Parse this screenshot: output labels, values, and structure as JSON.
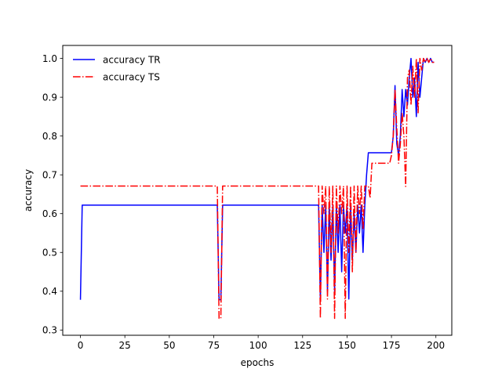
{
  "chart_data": {
    "type": "line",
    "title": "",
    "xlabel": "epochs",
    "ylabel": "accuracy",
    "xlim": [
      -9.95,
      208.95
    ],
    "ylim": [
      0.2865,
      1.0335
    ],
    "xticks": [
      0,
      25,
      50,
      75,
      100,
      125,
      150,
      175,
      200
    ],
    "yticks": [
      0.3,
      0.4,
      0.5,
      0.6,
      0.7,
      0.8,
      0.9,
      1.0
    ],
    "ytick_labels": [
      "0.3",
      "0.4",
      "0.5",
      "0.6",
      "0.7",
      "0.8",
      "0.9",
      "1.0"
    ],
    "grid": false,
    "legend_position": "top-left",
    "series": [
      {
        "name": "accuracy TR",
        "color": "#0000ff",
        "linestyle": "solid",
        "x": [
          0,
          1,
          76,
          77,
          78,
          79,
          80,
          81,
          133,
          134,
          135,
          136,
          137,
          138,
          139,
          140,
          141,
          142,
          143,
          144,
          145,
          146,
          147,
          148,
          149,
          150,
          151,
          152,
          153,
          154,
          155,
          156,
          157,
          158,
          159,
          160,
          161,
          162,
          163,
          164,
          175,
          176,
          177,
          178,
          179,
          180,
          181,
          182,
          183,
          184,
          185,
          186,
          187,
          188,
          189,
          190,
          191,
          192,
          193,
          194,
          195,
          196,
          197,
          198,
          199
        ],
        "y": [
          0.378,
          0.622,
          0.622,
          0.622,
          0.378,
          0.378,
          0.622,
          0.622,
          0.622,
          0.622,
          0.378,
          0.622,
          0.5,
          0.622,
          0.4,
          0.622,
          0.48,
          0.622,
          0.4,
          0.622,
          0.5,
          0.622,
          0.45,
          0.622,
          0.55,
          0.622,
          0.38,
          0.622,
          0.48,
          0.6,
          0.5,
          0.622,
          0.55,
          0.622,
          0.5,
          0.622,
          0.7,
          0.757,
          0.757,
          0.757,
          0.757,
          0.8,
          0.93,
          0.78,
          0.75,
          0.8,
          0.92,
          0.85,
          0.92,
          0.88,
          0.95,
          1.0,
          0.9,
          0.95,
          0.85,
          0.99,
          0.9,
          0.95,
          1.0,
          0.99,
          1.0,
          0.99,
          1.0,
          0.99,
          0.99
        ]
      },
      {
        "name": "accuracy TS",
        "color": "#ff0000",
        "linestyle": "dashdot",
        "x": [
          0,
          1,
          76,
          77,
          78,
          79,
          80,
          81,
          133,
          134,
          135,
          136,
          137,
          138,
          139,
          140,
          141,
          142,
          143,
          144,
          145,
          146,
          147,
          148,
          149,
          150,
          151,
          152,
          153,
          154,
          155,
          156,
          157,
          158,
          159,
          160,
          161,
          162,
          163,
          164,
          165,
          166,
          167,
          168,
          169,
          170,
          171,
          172,
          173,
          174,
          175,
          176,
          177,
          178,
          179,
          180,
          181,
          182,
          183,
          184,
          185,
          186,
          187,
          188,
          189,
          190,
          191,
          192,
          193,
          194,
          195,
          196,
          197,
          198,
          199
        ],
        "y": [
          0.671,
          0.671,
          0.671,
          0.671,
          0.33,
          0.33,
          0.671,
          0.671,
          0.671,
          0.671,
          0.33,
          0.671,
          0.6,
          0.671,
          0.38,
          0.671,
          0.5,
          0.671,
          0.33,
          0.671,
          0.55,
          0.671,
          0.6,
          0.671,
          0.33,
          0.671,
          0.5,
          0.671,
          0.45,
          0.671,
          0.5,
          0.671,
          0.6,
          0.671,
          0.56,
          0.671,
          0.671,
          0.671,
          0.64,
          0.73,
          0.73,
          0.73,
          0.73,
          0.73,
          0.73,
          0.73,
          0.73,
          0.73,
          0.73,
          0.73,
          0.75,
          0.8,
          0.92,
          0.82,
          0.73,
          0.78,
          0.86,
          0.8,
          0.67,
          0.95,
          0.97,
          0.88,
          0.98,
          0.9,
          1.0,
          0.86,
          1.0,
          0.97,
          1.0,
          0.99,
          1.0,
          0.99,
          1.0,
          0.99,
          0.99
        ]
      }
    ]
  }
}
